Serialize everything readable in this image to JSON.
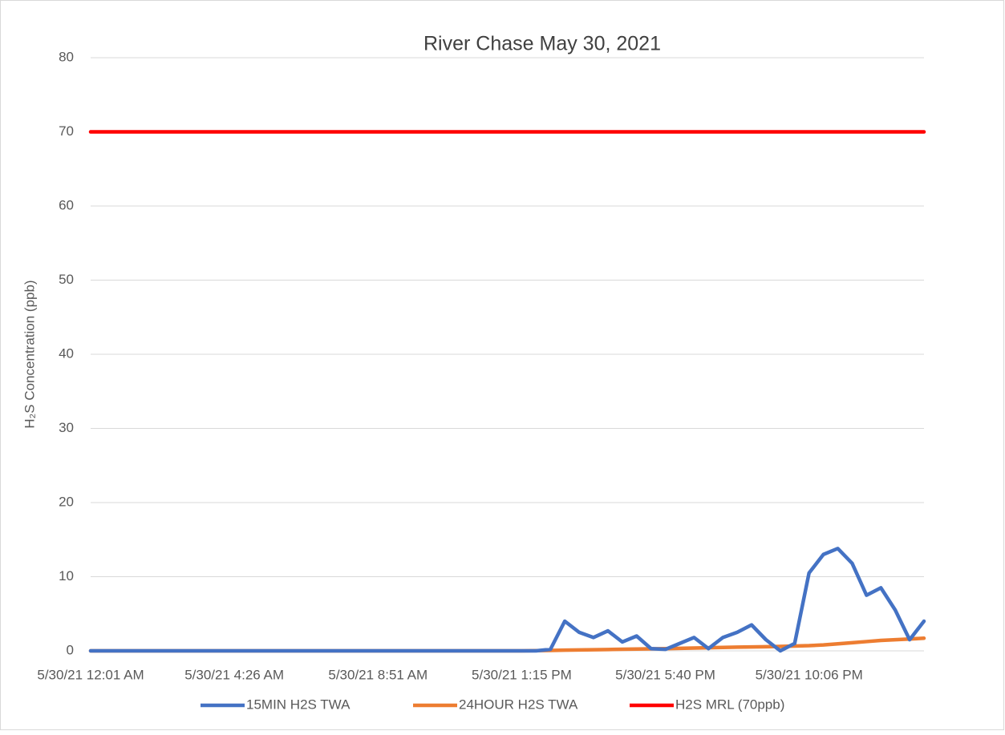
{
  "chart_data": {
    "type": "line",
    "title": "River Chase May 30, 2021",
    "y_label": "H₂S Concentration (ppb)",
    "categories": [
      "5/30/21 12:01 AM",
      null,
      null,
      null,
      null,
      null,
      null,
      null,
      null,
      null,
      "5/30/21 4:26 AM",
      null,
      null,
      null,
      null,
      null,
      null,
      null,
      null,
      null,
      "5/30/21 8:51 AM",
      null,
      null,
      null,
      null,
      null,
      null,
      null,
      null,
      null,
      "5/30/21 1:15 PM",
      null,
      null,
      null,
      null,
      null,
      null,
      null,
      null,
      null,
      "5/30/21 5:40 PM",
      null,
      null,
      null,
      null,
      null,
      null,
      null,
      null,
      null,
      "5/30/21 10:06 PM",
      null,
      null,
      null,
      null,
      null,
      null,
      null,
      null
    ],
    "series": [
      {
        "name": "15MIN H2S TWA",
        "color": "#4472c4",
        "values": [
          0,
          0,
          0,
          0,
          0,
          0,
          0,
          0,
          0,
          0,
          0,
          0,
          0,
          0,
          0,
          0,
          0,
          0,
          0,
          0,
          0,
          0,
          0,
          0,
          0,
          0,
          0,
          0,
          0,
          0,
          0,
          0,
          0.2,
          4.0,
          2.5,
          1.8,
          2.7,
          1.2,
          2.0,
          0.3,
          0.2,
          1.0,
          1.8,
          0.3,
          1.8,
          2.5,
          3.5,
          1.5,
          0,
          1.0,
          10.5,
          13,
          13.8,
          11.8,
          7.5,
          8.5,
          5.5,
          1.5,
          4.0
        ]
      },
      {
        "name": "24HOUR H2S TWA",
        "color": "#ed7d31",
        "values": [
          0,
          0,
          0,
          0,
          0,
          0,
          0,
          0,
          0,
          0,
          0,
          0,
          0,
          0,
          0,
          0,
          0,
          0,
          0,
          0,
          0,
          0,
          0,
          0,
          0,
          0,
          0,
          0,
          0,
          0,
          0,
          0.03,
          0.06,
          0.09,
          0.12,
          0.15,
          0.18,
          0.21,
          0.24,
          0.27,
          0.3,
          0.34,
          0.38,
          0.42,
          0.46,
          0.5,
          0.53,
          0.56,
          0.6,
          0.65,
          0.7,
          0.8,
          0.95,
          1.1,
          1.25,
          1.4,
          1.5,
          1.6,
          1.7
        ]
      },
      {
        "name": "H2S MRL (70ppb)",
        "color": "#ff0000",
        "values": [
          70,
          70,
          70,
          70,
          70,
          70,
          70,
          70,
          70,
          70,
          70,
          70,
          70,
          70,
          70,
          70,
          70,
          70,
          70,
          70,
          70,
          70,
          70,
          70,
          70,
          70,
          70,
          70,
          70,
          70,
          70,
          70,
          70,
          70,
          70,
          70,
          70,
          70,
          70,
          70,
          70,
          70,
          70,
          70,
          70,
          70,
          70,
          70,
          70,
          70,
          70,
          70,
          70,
          70,
          70,
          70,
          70,
          70,
          70
        ]
      }
    ],
    "ylim": [
      0,
      80
    ],
    "yticks": [
      0,
      10,
      20,
      30,
      40,
      50,
      60,
      70,
      80
    ],
    "grid": true,
    "legend": "bottom"
  }
}
